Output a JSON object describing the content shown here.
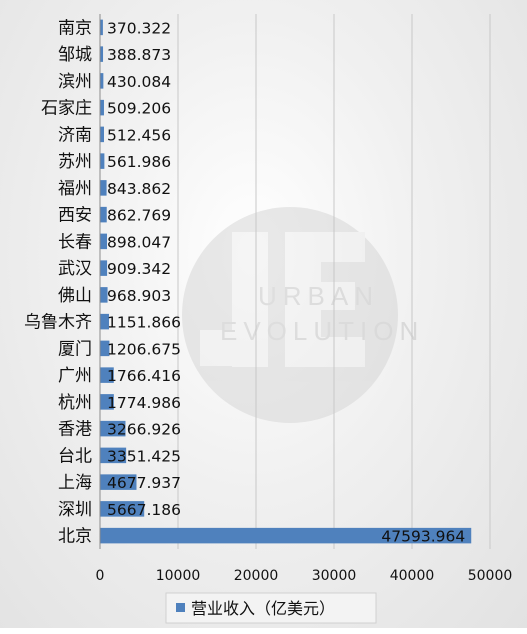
{
  "chart_data": {
    "type": "bar",
    "orientation": "horizontal",
    "categories": [
      "南京",
      "邹城",
      "滨州",
      "石家庄",
      "济南",
      "苏州",
      "福州",
      "西安",
      "长春",
      "武汉",
      "佛山",
      "乌鲁木齐",
      "厦门",
      "广州",
      "杭州",
      "香港",
      "台北",
      "上海",
      "深圳",
      "北京"
    ],
    "series": [
      {
        "name": "营业收入（亿美元）",
        "color": "#4f81bd",
        "values": [
          370.322,
          388.873,
          430.084,
          509.206,
          512.456,
          561.986,
          843.862,
          862.769,
          898.047,
          909.342,
          968.903,
          1151.866,
          1206.675,
          1766.416,
          1774.986,
          3266.926,
          3351.425,
          4677.937,
          5667.186,
          47593.964
        ]
      }
    ],
    "data_labels": [
      "370.322",
      "388.873",
      "430.084",
      "509.206",
      "512.456",
      "561.986",
      "843.862",
      "862.769",
      "898.047",
      "909.342",
      "968.903",
      "1151.866",
      "1206.675",
      "1766.416",
      "1774.986",
      "3266.926",
      "3351.425",
      "4677.937",
      "5667.186",
      "47593.964"
    ],
    "xticks": [
      "0",
      "10000",
      "20000",
      "30000",
      "40000",
      "50000"
    ],
    "xlim": [
      0,
      50000
    ],
    "grid": "vertical",
    "legend": "bottom",
    "title": "",
    "xlabel": "",
    "ylabel": ""
  },
  "watermark": {
    "text_top": "URBAN",
    "text_bottom": "EVOLUTION"
  }
}
